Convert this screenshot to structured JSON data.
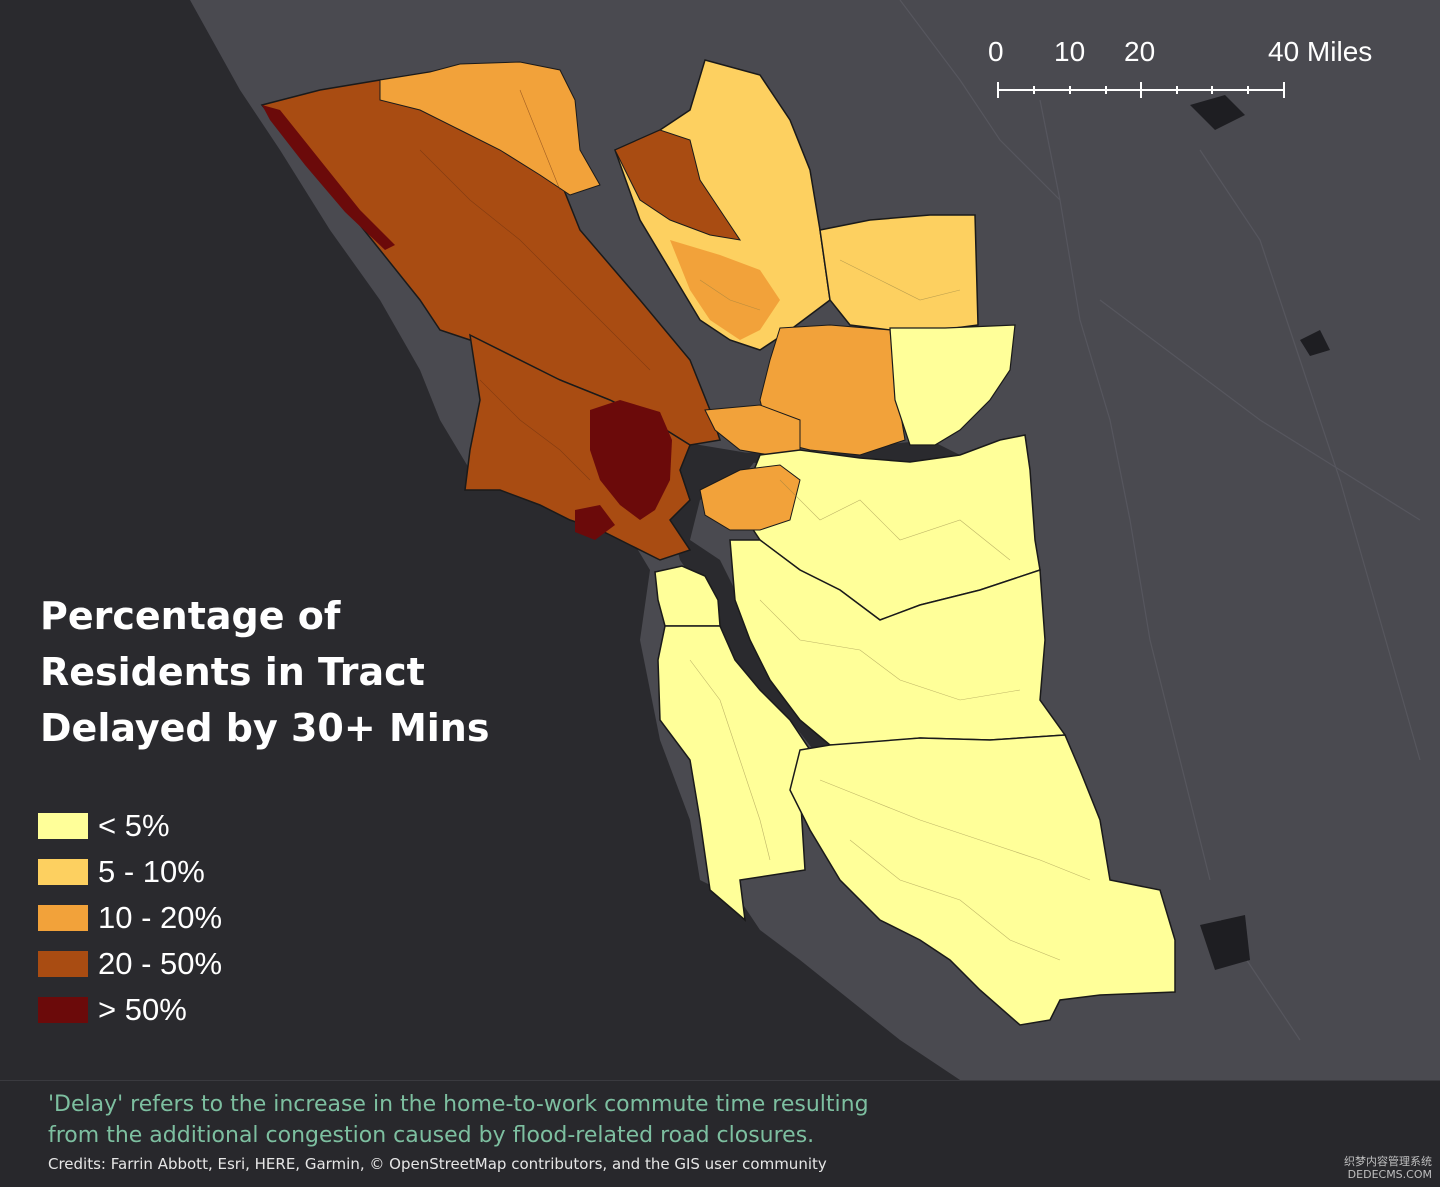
{
  "map": {
    "title_lines": [
      "Percentage of",
      "Residents in Tract",
      "Delayed by 30+ Mins"
    ],
    "legend": [
      {
        "label": "< 5%",
        "color": "#ffff99"
      },
      {
        "label": "5 - 10%",
        "color": "#fdd060"
      },
      {
        "label": "10 - 20%",
        "color": "#f2a23a"
      },
      {
        "label": "20 - 50%",
        "color": "#a94c12"
      },
      {
        "label": "> 50%",
        "color": "#6b0a0a"
      }
    ],
    "scale_bar": {
      "labels": [
        "0",
        "10",
        "20",
        "40 Miles"
      ]
    },
    "colors": {
      "ocean": "#2a2a2e",
      "land": "#4a4a50",
      "boundary": "#1a1a1a"
    }
  },
  "footer": {
    "note_lines": [
      "'Delay' refers to the increase in the home-to-work commute time resulting",
      "from the additional congestion caused by flood-related road closures."
    ],
    "credits": "Credits: Farrin Abbott, Esri, HERE, Garmin, © OpenStreetMap contributors, and the GIS user community",
    "watermark_lines": [
      "织梦内容管理系统",
      "DEDECMS.COM"
    ]
  }
}
